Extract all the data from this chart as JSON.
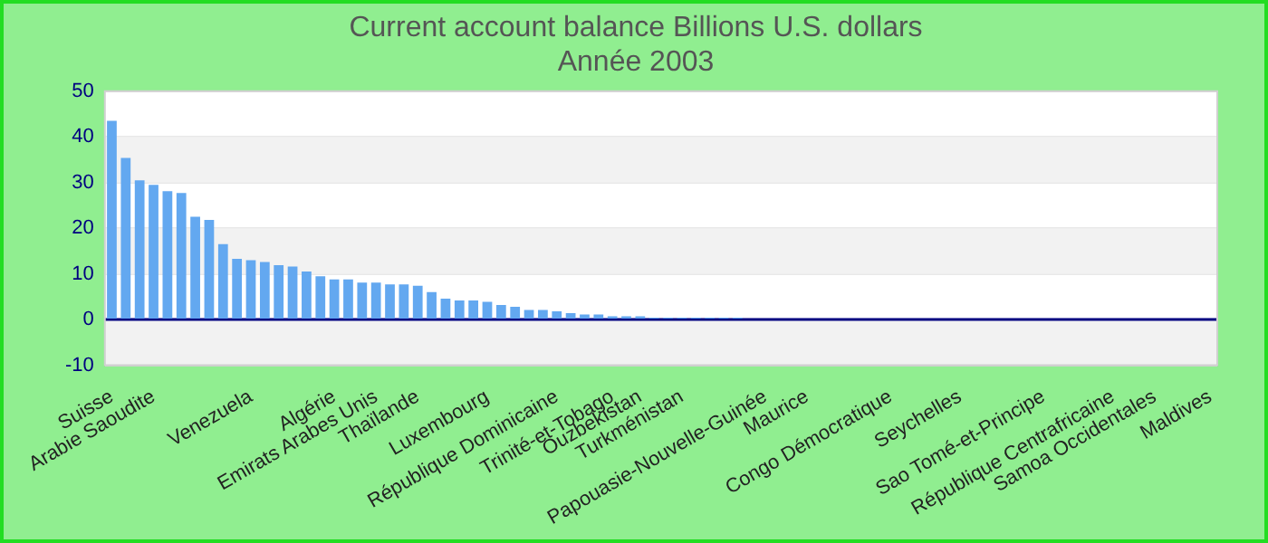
{
  "chart_data": {
    "type": "bar",
    "title": "Current account balance Billions U.S. dollars",
    "subtitle": "Année 2003",
    "categories": [
      "Suisse",
      null,
      null,
      "Arabie Saoudite",
      null,
      null,
      null,
      null,
      null,
      null,
      "Venezuela",
      null,
      null,
      null,
      null,
      null,
      "Algérie",
      null,
      null,
      "Emirats Arabes Unis",
      null,
      null,
      "Thaïlande",
      null,
      null,
      null,
      null,
      "Luxembourg",
      null,
      null,
      null,
      null,
      "République Dominicaine",
      null,
      null,
      null,
      "Trinité-et-Tobago",
      null,
      "Ouzbekistan",
      null,
      null,
      "Turkménistan",
      null,
      null,
      null,
      null,
      null,
      "Papouasie-Nouvelle-Guinée",
      null,
      null,
      "Maurice",
      null,
      null,
      null,
      null,
      null,
      "Congo Démocratique",
      null,
      null,
      null,
      null,
      "Seychelles",
      null,
      null,
      null,
      null,
      null,
      "Sao Tomé-et-Principe",
      null,
      null,
      null,
      null,
      "République Centrafricaine",
      null,
      null,
      "Samoa Occidentales",
      null,
      null,
      null,
      "Maldives"
    ],
    "values": [
      43.5,
      35.4,
      30.5,
      29.5,
      28.1,
      27.7,
      22.5,
      21.8,
      16.5,
      13.3,
      13.0,
      12.6,
      11.9,
      11.6,
      10.5,
      9.5,
      8.8,
      8.8,
      8.1,
      8.1,
      7.7,
      7.7,
      7.4,
      6.0,
      4.6,
      4.2,
      4.2,
      3.9,
      3.2,
      2.8,
      2.1,
      2.1,
      1.8,
      1.4,
      1.1,
      1.1,
      0.7,
      0.7,
      0.7,
      0.4,
      0.4,
      0.4,
      0.4,
      0.4,
      0.4,
      0.4,
      0,
      0,
      0,
      0,
      0,
      0,
      0,
      0,
      0,
      0,
      0,
      0,
      0,
      0,
      0,
      0,
      0,
      0,
      0,
      0,
      0,
      0,
      0,
      0,
      0,
      0,
      0,
      0,
      0,
      0,
      0,
      0,
      0,
      0
    ],
    "color": "#63a8f0",
    "ylim": [
      -10,
      50
    ],
    "yticks": [
      -10,
      0,
      10,
      20,
      30,
      40,
      50
    ],
    "grid": "y",
    "legend": false,
    "ref_lines": [
      {
        "axis": "y",
        "value": 0,
        "color": "#000080"
      }
    ]
  }
}
